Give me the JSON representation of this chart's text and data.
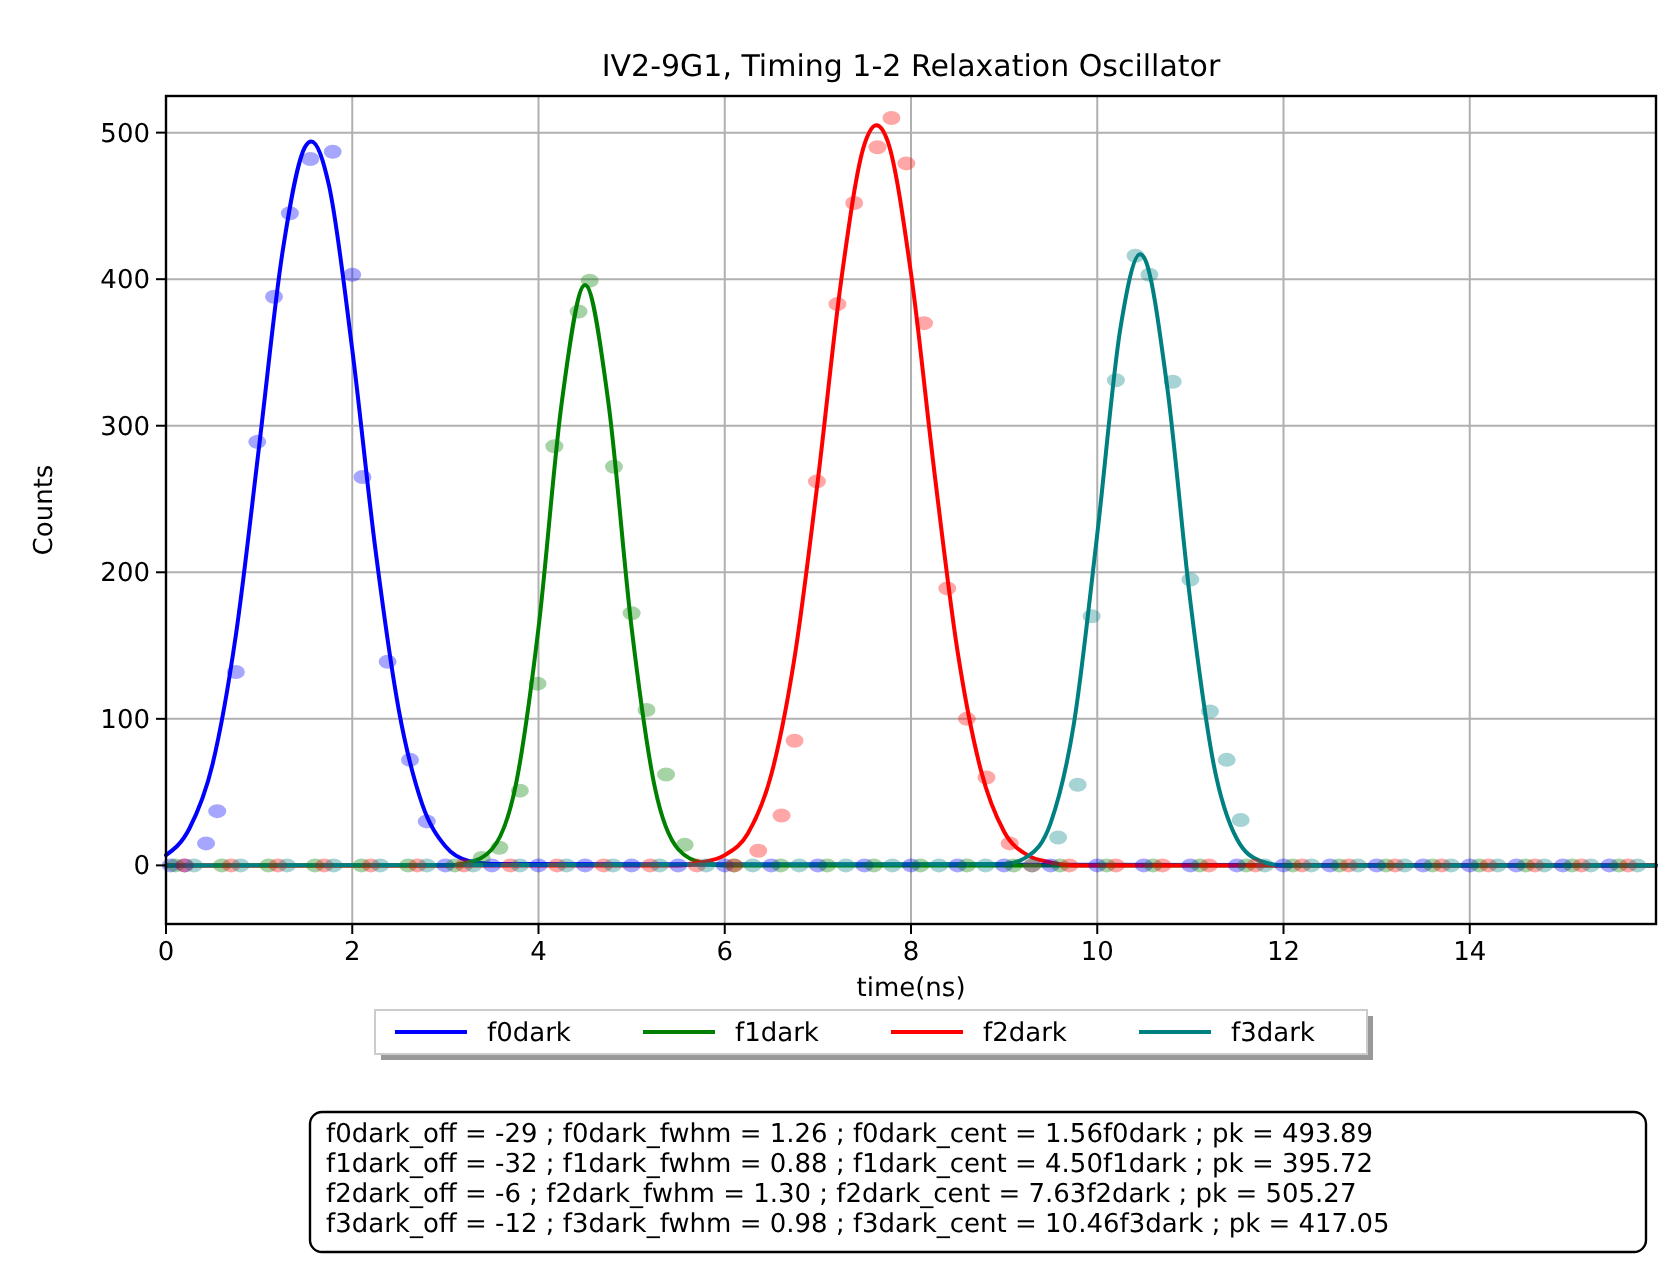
{
  "chart_data": {
    "type": "line",
    "title": "IV2-9G1, Timing 1-2 Relaxation Oscillator",
    "xlabel": "time(ns)",
    "ylabel": "Counts",
    "xlim": [
      0,
      16
    ],
    "ylim": [
      -40,
      525
    ],
    "xticks": [
      0,
      2,
      4,
      6,
      8,
      10,
      12,
      14
    ],
    "yticks": [
      0,
      100,
      200,
      300,
      400,
      500
    ],
    "grid": true,
    "legend": "bottom",
    "line_style": "solid",
    "series": [
      {
        "name": "f0dark",
        "color": "#0000ff",
        "marker": "none",
        "x": [
          0,
          0.25,
          0.5,
          0.75,
          1,
          1.25,
          1.5,
          1.56,
          1.75,
          2,
          2.25,
          2.5,
          2.75,
          3,
          3.25,
          3.5,
          16
        ],
        "values": [
          7,
          25,
          69,
          157,
          286,
          418,
          491,
          494,
          464,
          352,
          215,
          106,
          42,
          13,
          3,
          1,
          0
        ]
      },
      {
        "name": "f1dark",
        "color": "#008000",
        "marker": "none",
        "x": [
          0,
          3,
          3.25,
          3.5,
          3.75,
          4,
          4.25,
          4.5,
          4.75,
          5,
          5.25,
          5.5,
          5.75,
          6,
          16
        ],
        "values": [
          0,
          0,
          2,
          11,
          53,
          162,
          316,
          396,
          316,
          162,
          53,
          11,
          2,
          0,
          0
        ]
      },
      {
        "name": "f2dark",
        "color": "#ff0000",
        "marker": "none",
        "x": [
          0,
          5.5,
          5.75,
          6,
          6.25,
          6.5,
          6.75,
          7,
          7.25,
          7.5,
          7.63,
          7.75,
          8,
          8.25,
          8.5,
          8.75,
          9,
          9.25,
          9.5,
          9.75,
          16
        ],
        "values": [
          0,
          0,
          2,
          7,
          22,
          62,
          142,
          263,
          399,
          492,
          505,
          494,
          404,
          269,
          146,
          65,
          23,
          7,
          2,
          0,
          0
        ]
      },
      {
        "name": "f3dark",
        "color": "#008080",
        "marker": "none",
        "x": [
          0,
          9,
          9.25,
          9.5,
          9.75,
          10,
          10.25,
          10.46,
          10.5,
          10.75,
          11,
          11.25,
          11.5,
          11.75,
          12,
          16
        ],
        "values": [
          0,
          1,
          6,
          29,
          97,
          226,
          367,
          417,
          415,
          327,
          180,
          69,
          18,
          3,
          0,
          0
        ]
      },
      {
        "type": "scatter",
        "color": "#0000ff",
        "marker": "circle",
        "x": [
          0.05,
          0.2,
          0.43,
          0.55,
          0.75,
          0.98,
          1.16,
          1.33,
          1.55,
          1.79,
          2.0,
          2.11,
          2.38,
          2.62,
          2.8,
          3.0,
          3.5,
          4.0,
          4.5,
          5.0,
          5.5,
          6.0,
          6.5,
          7.0,
          7.5,
          8.0,
          8.5,
          9.0,
          9.5,
          10.0,
          10.5,
          11.0,
          11.5,
          12.0,
          12.5,
          13.0,
          13.5,
          14.0,
          14.5,
          15.0,
          15.5
        ],
        "values": [
          0,
          0,
          15,
          37,
          132,
          289,
          388,
          445,
          482,
          487,
          403,
          265,
          139,
          72,
          30,
          0,
          0,
          0,
          0,
          0,
          0,
          0,
          0,
          0,
          0,
          0,
          0,
          0,
          0,
          0,
          0,
          0,
          0,
          0,
          0,
          0,
          0,
          0,
          0,
          0,
          0
        ]
      },
      {
        "type": "scatter",
        "color": "#008000",
        "marker": "circle",
        "x": [
          0.1,
          0.6,
          1.1,
          1.6,
          2.1,
          2.6,
          3.1,
          3.39,
          3.58,
          3.8,
          3.99,
          4.17,
          4.43,
          4.55,
          4.81,
          5.0,
          5.16,
          5.37,
          5.57,
          6.1,
          6.6,
          7.1,
          7.6,
          8.1,
          8.6,
          9.1,
          9.6,
          10.1,
          10.6,
          11.1,
          11.6,
          12.1,
          12.6,
          13.1,
          13.6,
          14.1,
          14.6,
          15.1,
          15.6
        ],
        "values": [
          0,
          0,
          0,
          0,
          0,
          0,
          0,
          5,
          12,
          51,
          124,
          286,
          378,
          399,
          272,
          172,
          106,
          62,
          14,
          0,
          0,
          0,
          0,
          0,
          0,
          0,
          0,
          0,
          0,
          0,
          0,
          0,
          0,
          0,
          0,
          0,
          0,
          0,
          0
        ]
      },
      {
        "type": "scatter",
        "color": "#ff0000",
        "marker": "circle",
        "x": [
          0.2,
          0.7,
          1.2,
          1.7,
          2.2,
          2.7,
          3.2,
          3.7,
          4.2,
          4.7,
          5.2,
          5.7,
          6.1,
          6.36,
          6.61,
          6.75,
          6.99,
          7.21,
          7.39,
          7.64,
          7.79,
          7.95,
          8.14,
          8.39,
          8.6,
          8.81,
          9.06,
          9.3,
          9.7,
          10.2,
          10.7,
          11.2,
          11.7,
          12.2,
          12.7,
          13.2,
          13.7,
          14.2,
          14.7,
          15.2,
          15.7
        ],
        "values": [
          0,
          0,
          0,
          0,
          0,
          0,
          0,
          0,
          0,
          0,
          0,
          0,
          0,
          10,
          34,
          85,
          262,
          383,
          452,
          490,
          510,
          479,
          370,
          189,
          100,
          60,
          15,
          0,
          0,
          0,
          0,
          0,
          0,
          0,
          0,
          0,
          0,
          0,
          0,
          0,
          0
        ]
      },
      {
        "type": "scatter",
        "color": "#008080",
        "marker": "circle",
        "x": [
          0.3,
          0.8,
          1.3,
          1.8,
          2.3,
          2.8,
          3.3,
          3.8,
          4.3,
          4.8,
          5.3,
          5.8,
          6.3,
          6.8,
          7.3,
          7.8,
          8.3,
          8.8,
          9.3,
          9.58,
          9.79,
          9.94,
          10.2,
          10.41,
          10.56,
          10.81,
          11.0,
          11.21,
          11.39,
          11.54,
          11.8,
          12.3,
          12.8,
          13.3,
          13.8,
          14.3,
          14.8,
          15.3,
          15.8
        ],
        "values": [
          0,
          0,
          0,
          0,
          0,
          0,
          0,
          0,
          0,
          0,
          0,
          0,
          0,
          0,
          0,
          0,
          0,
          0,
          0,
          19,
          55,
          170,
          331,
          416,
          403,
          330,
          195,
          105,
          72,
          31,
          0,
          0,
          0,
          0,
          0,
          0,
          0,
          0,
          0
        ]
      }
    ],
    "annotations": [
      "f0dark_off = -29 ; f0dark_fwhm = 1.26 ; f0dark_cent = 1.56f0dark ; pk = 493.89",
      "f1dark_off = -32 ; f1dark_fwhm = 0.88 ; f1dark_cent = 4.50f1dark ; pk = 395.72",
      "f2dark_off = -6 ; f2dark_fwhm = 1.30 ; f2dark_cent = 7.63f2dark ; pk = 505.27",
      "f3dark_off = -12 ; f3dark_fwhm = 0.98 ; f3dark_cent = 10.46f3dark ; pk = 417.05"
    ]
  }
}
